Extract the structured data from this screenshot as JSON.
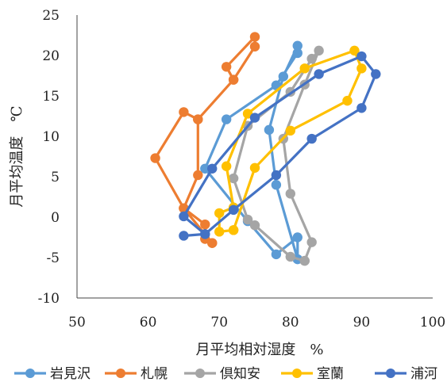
{
  "chart_data": {
    "type": "scatter",
    "xlabel": "月平均相対湿度　%",
    "ylabel": "月平均温度　℃",
    "xlim": [
      50,
      100
    ],
    "ylim": [
      -10,
      25
    ],
    "xticks": [
      50,
      60,
      70,
      80,
      90,
      100
    ],
    "yticks": [
      -10,
      -5,
      0,
      5,
      10,
      15,
      20,
      25
    ],
    "grid": false,
    "legend_position": "bottom",
    "series": [
      {
        "name": "岩見沢",
        "color": "#5B9BD5",
        "points": [
          [
            81,
            -5.2
          ],
          [
            81,
            -2.5
          ],
          [
            78,
            -4.6
          ],
          [
            74,
            -0.5
          ],
          [
            68,
            6.0
          ],
          [
            71,
            12.1
          ],
          [
            78,
            16.3
          ],
          [
            81,
            20.3
          ],
          [
            81,
            21.2
          ],
          [
            79,
            17.4
          ],
          [
            77,
            10.8
          ],
          [
            78,
            4.0
          ],
          [
            81,
            -5.2
          ]
        ]
      },
      {
        "name": "札幌",
        "color": "#ED7D31",
        "points": [
          [
            69,
            -3.2
          ],
          [
            68,
            -2.7
          ],
          [
            68,
            -0.9
          ],
          [
            65,
            1.1
          ],
          [
            61,
            7.3
          ],
          [
            65,
            13.0
          ],
          [
            67,
            12.1
          ],
          [
            72,
            17.0
          ],
          [
            71,
            18.6
          ],
          [
            75,
            22.3
          ],
          [
            75,
            21.1
          ],
          [
            72,
            17.0
          ],
          [
            67,
            12.1
          ],
          [
            67,
            5.2
          ],
          [
            65,
            1.1
          ],
          [
            69,
            -3.2
          ]
        ]
      },
      {
        "name": "倶知安",
        "color": "#A5A5A5",
        "points": [
          [
            82,
            -5.4
          ],
          [
            80,
            -4.9
          ],
          [
            75,
            -1.0
          ],
          [
            74,
            -0.3
          ],
          [
            72,
            4.8
          ],
          [
            74,
            11.3
          ],
          [
            80,
            15.5
          ],
          [
            83,
            19.6
          ],
          [
            84,
            20.6
          ],
          [
            82,
            16.4
          ],
          [
            79,
            9.7
          ],
          [
            80,
            2.9
          ],
          [
            83,
            -3.1
          ],
          [
            82,
            -5.4
          ]
        ]
      },
      {
        "name": "室蘭",
        "color": "#FFC000",
        "points": [
          [
            72,
            -1.6
          ],
          [
            70,
            -1.8
          ],
          [
            70,
            0.5
          ],
          [
            72,
            1.2
          ],
          [
            71,
            6.3
          ],
          [
            74,
            12.8
          ],
          [
            82,
            18.4
          ],
          [
            89,
            20.6
          ],
          [
            90,
            18.4
          ],
          [
            88,
            14.4
          ],
          [
            80,
            10.7
          ],
          [
            75,
            6.1
          ],
          [
            72,
            -1.6
          ]
        ]
      },
      {
        "name": "浦河",
        "color": "#4472C4",
        "points": [
          [
            65,
            -2.3
          ],
          [
            68,
            -2.1
          ],
          [
            65,
            0.1
          ],
          [
            69,
            6.0
          ],
          [
            75,
            12.3
          ],
          [
            84,
            17.7
          ],
          [
            90,
            19.9
          ],
          [
            92,
            17.7
          ],
          [
            90,
            13.5
          ],
          [
            83,
            9.7
          ],
          [
            78,
            5.2
          ],
          [
            72,
            0.9
          ],
          [
            68,
            -2.1
          ]
        ]
      }
    ]
  }
}
